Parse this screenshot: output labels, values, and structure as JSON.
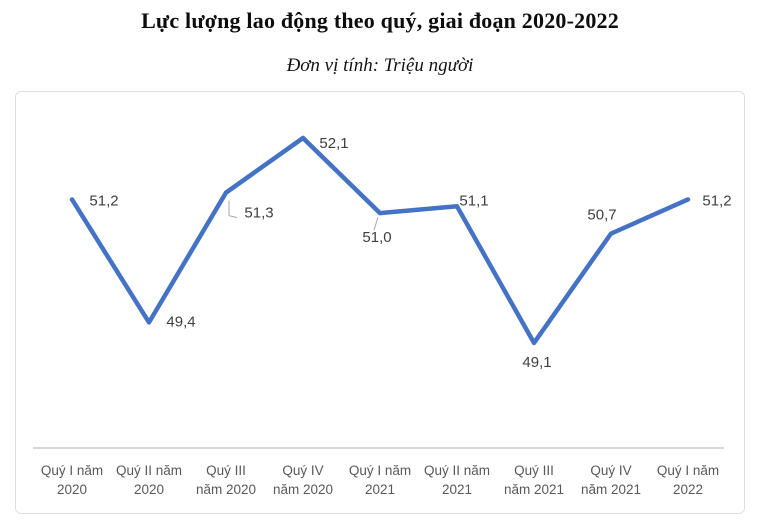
{
  "chart_data": {
    "type": "line",
    "title": "Lực lượng lao động theo quý, giai đoạn 2020-2022",
    "subtitle": "Đơn vị tính: Triệu người",
    "unit": "Triệu người",
    "categories": [
      "Quý I năm\n2020",
      "Quý II năm\n2020",
      "Quý III\nnăm 2020",
      "Quý IV\nnăm 2020",
      "Quý I năm\n2021",
      "Quý II năm\n2021",
      "Quý III\nnăm 2021",
      "Quý IV\nnăm 2021",
      "Quý I năm\n2022"
    ],
    "values": [
      51.2,
      49.4,
      51.3,
      52.1,
      51.0,
      51.1,
      49.1,
      50.7,
      51.2
    ],
    "value_labels": [
      "51,2",
      "49,4",
      "51,3",
      "52,1",
      "51,0",
      "51,1",
      "49,1",
      "50,7",
      "51,2"
    ],
    "series_name": "Lực lượng lao động",
    "legend_position": "none",
    "grid": false,
    "x_axis_line": true,
    "y_axis_visible": false,
    "colors": {
      "series_line": "#4472C4",
      "axis_line": "#BFBFBF",
      "data_label": "#3F3F3F",
      "tick_label": "#595959",
      "frame_border": "#DEDEDE"
    }
  }
}
